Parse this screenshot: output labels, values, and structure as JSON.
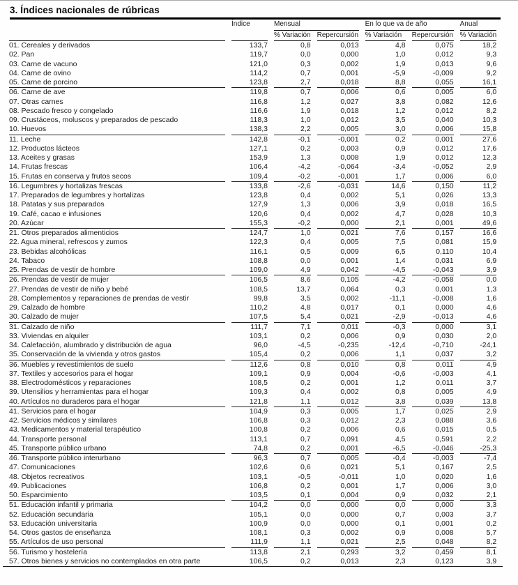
{
  "page": {
    "title": "3. Índices nacionales de rúbricas"
  },
  "colors": {
    "background": "#fefefe",
    "text": "#1a1a1a",
    "rule": "#000000"
  },
  "table": {
    "header": {
      "indice": "Índice",
      "mensual": "Mensual",
      "en_lo_que_va_de_ano": "En lo que va de año",
      "anual": "Anual",
      "pct_variacion": "% Variación",
      "repercusion": "Repercursión"
    },
    "rows": [
      {
        "label": "01. Cereales y derivados",
        "values": [
          "133,7",
          "0,8",
          "0,013",
          "4,8",
          "0,075",
          "18,2"
        ],
        "sep": false
      },
      {
        "label": "02. Pan",
        "values": [
          "119,7",
          "0,0",
          "0,000",
          "1,0",
          "0,012",
          "9,3"
        ],
        "sep": false
      },
      {
        "label": "03. Carne de vacuno",
        "values": [
          "121,0",
          "0,3",
          "0,002",
          "1,9",
          "0,013",
          "9,6"
        ],
        "sep": false
      },
      {
        "label": "04. Carne de ovino",
        "values": [
          "114,2",
          "0,7",
          "0,001",
          "-5,9",
          "-0,009",
          "9,2"
        ],
        "sep": false
      },
      {
        "label": "05. Carne de porcino",
        "values": [
          "123,8",
          "2,7",
          "0,018",
          "8,8",
          "0,055",
          "16,1"
        ],
        "sep": true
      },
      {
        "label": "06. Carne de ave",
        "values": [
          "119,8",
          "0,7",
          "0,006",
          "0,6",
          "0,005",
          "6,0"
        ],
        "sep": false
      },
      {
        "label": "07. Otras carnes",
        "values": [
          "116,8",
          "1,2",
          "0,027",
          "3,8",
          "0,082",
          "12,6"
        ],
        "sep": false
      },
      {
        "label": "08. Pescado fresco y congelado",
        "values": [
          "116,6",
          "1,9",
          "0,018",
          "1,2",
          "0,012",
          "8,2"
        ],
        "sep": false
      },
      {
        "label": "09. Crustáceos, moluscos y preparados de pescado",
        "values": [
          "118,3",
          "1,0",
          "0,012",
          "3,5",
          "0,040",
          "10,3"
        ],
        "sep": false
      },
      {
        "label": "10. Huevos",
        "values": [
          "138,3",
          "2,2",
          "0,005",
          "3,0",
          "0,006",
          "15,8"
        ],
        "sep": true
      },
      {
        "label": "11. Leche",
        "values": [
          "142,8",
          "-0,1",
          "-0,001",
          "0,2",
          "0,001",
          "27,6"
        ],
        "sep": false
      },
      {
        "label": "12. Productos lácteos",
        "values": [
          "127,1",
          "0,2",
          "0,003",
          "0,9",
          "0,012",
          "17,6"
        ],
        "sep": false
      },
      {
        "label": "13. Aceites y grasas",
        "values": [
          "153,9",
          "1,3",
          "0,008",
          "1,9",
          "0,012",
          "12,3"
        ],
        "sep": false
      },
      {
        "label": "14. Frutas frescas",
        "values": [
          "106,4",
          "-4,2",
          "-0,064",
          "-3,4",
          "-0,052",
          "2,9"
        ],
        "sep": false
      },
      {
        "label": "15. Frutas en conserva y frutos secos",
        "values": [
          "109,4",
          "-0,2",
          "-0,001",
          "1,7",
          "0,006",
          "6,0"
        ],
        "sep": true
      },
      {
        "label": "16. Legumbres y hortalizas frescas",
        "values": [
          "133,8",
          "-2,6",
          "-0,031",
          "14,6",
          "0,150",
          "11,2"
        ],
        "sep": false
      },
      {
        "label": "17. Preparados de legumbres y hortalizas",
        "values": [
          "123,8",
          "0,4",
          "0,002",
          "5,1",
          "0,026",
          "13,3"
        ],
        "sep": false
      },
      {
        "label": "18. Patatas y sus preparados",
        "values": [
          "127,9",
          "1,3",
          "0,006",
          "3,9",
          "0,018",
          "16,5"
        ],
        "sep": false
      },
      {
        "label": "19. Café, cacao e infusiones",
        "values": [
          "120,6",
          "0,4",
          "0,002",
          "4,7",
          "0,028",
          "10,3"
        ],
        "sep": false
      },
      {
        "label": "20. Azúcar",
        "values": [
          "155,3",
          "-0,2",
          "0,000",
          "2,1",
          "0,001",
          "49,6"
        ],
        "sep": true
      },
      {
        "label": "21. Otros preparados alimenticios",
        "values": [
          "124,7",
          "1,0",
          "0,021",
          "7,6",
          "0,157",
          "16,6"
        ],
        "sep": false
      },
      {
        "label": "22. Agua mineral, refrescos y zumos",
        "values": [
          "122,3",
          "0,4",
          "0,005",
          "7,5",
          "0,081",
          "15,9"
        ],
        "sep": false
      },
      {
        "label": "23. Bebidas alcohólicas",
        "values": [
          "116,1",
          "0,5",
          "0,009",
          "6,5",
          "0,110",
          "10,4"
        ],
        "sep": false
      },
      {
        "label": "24. Tabaco",
        "values": [
          "108,8",
          "0,0",
          "0,001",
          "1,4",
          "0,031",
          "6,9"
        ],
        "sep": false
      },
      {
        "label": "25. Prendas de vestir de hombre",
        "values": [
          "109,0",
          "4,9",
          "0,042",
          "-4,5",
          "-0,043",
          "3,9"
        ],
        "sep": true
      },
      {
        "label": "26. Prendas de vestir de mujer",
        "values": [
          "106,5",
          "8,6",
          "0,105",
          "-4,2",
          "-0,058",
          "0,0"
        ],
        "sep": false
      },
      {
        "label": "27. Prendas de vestir de niño y bebé",
        "values": [
          "108,5",
          "13,7",
          "0,064",
          "0,3",
          "0,001",
          "1,3"
        ],
        "sep": false
      },
      {
        "label": "28. Complementos y reparaciones de prendas de vestir",
        "values": [
          "99,8",
          "3,5",
          "0,002",
          "-11,1",
          "-0,008",
          "1,6"
        ],
        "sep": false
      },
      {
        "label": "29. Calzado de hombre",
        "values": [
          "110,2",
          "4,8",
          "0,017",
          "0,1",
          "0,000",
          "4,6"
        ],
        "sep": false
      },
      {
        "label": "30. Calzado de mujer",
        "values": [
          "107,5",
          "5,4",
          "0,021",
          "-2,9",
          "-0,013",
          "4,6"
        ],
        "sep": true
      },
      {
        "label": "31. Calzado de niño",
        "values": [
          "111,7",
          "7,1",
          "0,011",
          "-0,3",
          "0,000",
          "3,1"
        ],
        "sep": false
      },
      {
        "label": "33. Viviendas en alquiler",
        "values": [
          "103,1",
          "0,2",
          "0,006",
          "0,9",
          "0,030",
          "2,0"
        ],
        "sep": false
      },
      {
        "label": "34. Calefacción, alumbrado y distribución de agua",
        "values": [
          "96,0",
          "-4,5",
          "-0,235",
          "-12,4",
          "-0,710",
          "-24,1"
        ],
        "sep": false
      },
      {
        "label": "35. Conservación de la vivienda y otros gastos",
        "values": [
          "105,4",
          "0,2",
          "0,006",
          "1,1",
          "0,037",
          "3,2"
        ],
        "sep": true
      },
      {
        "label": "36. Muebles y revestimientos de suelo",
        "values": [
          "112,6",
          "0,8",
          "0,010",
          "0,8",
          "0,011",
          "4,9"
        ],
        "sep": false
      },
      {
        "label": "37. Textiles y accesorios para el hogar",
        "values": [
          "109,1",
          "0,9",
          "0,004",
          "-0,6",
          "-0,003",
          "4,1"
        ],
        "sep": false
      },
      {
        "label": "38. Electrodomésticos y reparaciones",
        "values": [
          "108,5",
          "0,2",
          "0,001",
          "1,2",
          "0,011",
          "3,7"
        ],
        "sep": false
      },
      {
        "label": "39. Utensilios y herramientas para el hogar",
        "values": [
          "109,3",
          "0,4",
          "0,002",
          "0,8",
          "0,005",
          "4,9"
        ],
        "sep": false
      },
      {
        "label": "40. Artículos no duraderos para el hogar",
        "values": [
          "121,8",
          "1,1",
          "0,012",
          "3,8",
          "0,039",
          "13,8"
        ],
        "sep": true
      },
      {
        "label": "41. Servicios para el hogar",
        "values": [
          "104,9",
          "0,3",
          "0,005",
          "1,7",
          "0,025",
          "2,9"
        ],
        "sep": false
      },
      {
        "label": "42. Servicios médicos y similares",
        "values": [
          "106,8",
          "0,3",
          "0,012",
          "2,3",
          "0,088",
          "3,6"
        ],
        "sep": false
      },
      {
        "label": "43. Medicamentos y material terapéutico",
        "values": [
          "100,8",
          "0,2",
          "0,006",
          "0,6",
          "0,015",
          "0,5"
        ],
        "sep": false
      },
      {
        "label": "44. Transporte personal",
        "values": [
          "113,1",
          "0,7",
          "0,091",
          "4,5",
          "0,591",
          "2,2"
        ],
        "sep": false
      },
      {
        "label": "45. Transporte público urbano",
        "values": [
          "74,8",
          "0,2",
          "0,001",
          "-6,5",
          "-0,046",
          "-25,3"
        ],
        "sep": true
      },
      {
        "label": "46. Transporte público interurbano",
        "values": [
          "96,3",
          "0,7",
          "0,005",
          "-0,4",
          "-0,003",
          "-7,4"
        ],
        "sep": false
      },
      {
        "label": "47. Comunicaciones",
        "values": [
          "102,6",
          "0,6",
          "0,021",
          "5,1",
          "0,167",
          "2,5"
        ],
        "sep": false
      },
      {
        "label": "48. Objetos recreativos",
        "values": [
          "103,1",
          "-0,5",
          "-0,011",
          "1,0",
          "0,020",
          "1,6"
        ],
        "sep": false
      },
      {
        "label": "49. Publicaciones",
        "values": [
          "106,8",
          "0,2",
          "0,001",
          "1,7",
          "0,006",
          "3,0"
        ],
        "sep": false
      },
      {
        "label": "50. Esparcimiento",
        "values": [
          "103,5",
          "0,1",
          "0,004",
          "0,9",
          "0,032",
          "2,1"
        ],
        "sep": true
      },
      {
        "label": "51. Educación infantil y primaria",
        "values": [
          "104,2",
          "0,0",
          "0,000",
          "0,0",
          "0,000",
          "3,3"
        ],
        "sep": false
      },
      {
        "label": "52. Educación secundaria",
        "values": [
          "105,1",
          "0,0",
          "0,000",
          "0,7",
          "0,003",
          "3,7"
        ],
        "sep": false
      },
      {
        "label": "53. Educación universitaria",
        "values": [
          "100,9",
          "0,0",
          "0,000",
          "0,1",
          "0,001",
          "0,2"
        ],
        "sep": false
      },
      {
        "label": "54. Otros gastos de enseñanza",
        "values": [
          "108,1",
          "0,3",
          "0,002",
          "0,9",
          "0,008",
          "5,7"
        ],
        "sep": false
      },
      {
        "label": "55. Artículos de uso personal",
        "values": [
          "111,9",
          "1,1",
          "0,021",
          "2,5",
          "0,048",
          "8,2"
        ],
        "sep": true
      },
      {
        "label": "56. Turismo y hostelería",
        "values": [
          "113,8",
          "2,1",
          "0,293",
          "3,2",
          "0,459",
          "8,1"
        ],
        "sep": false
      },
      {
        "label": "57. Otros bienes y servicios no contemplados en otra parte",
        "values": [
          "106,5",
          "0,2",
          "0,013",
          "2,3",
          "0,123",
          "3,9"
        ],
        "sep": false
      }
    ]
  }
}
